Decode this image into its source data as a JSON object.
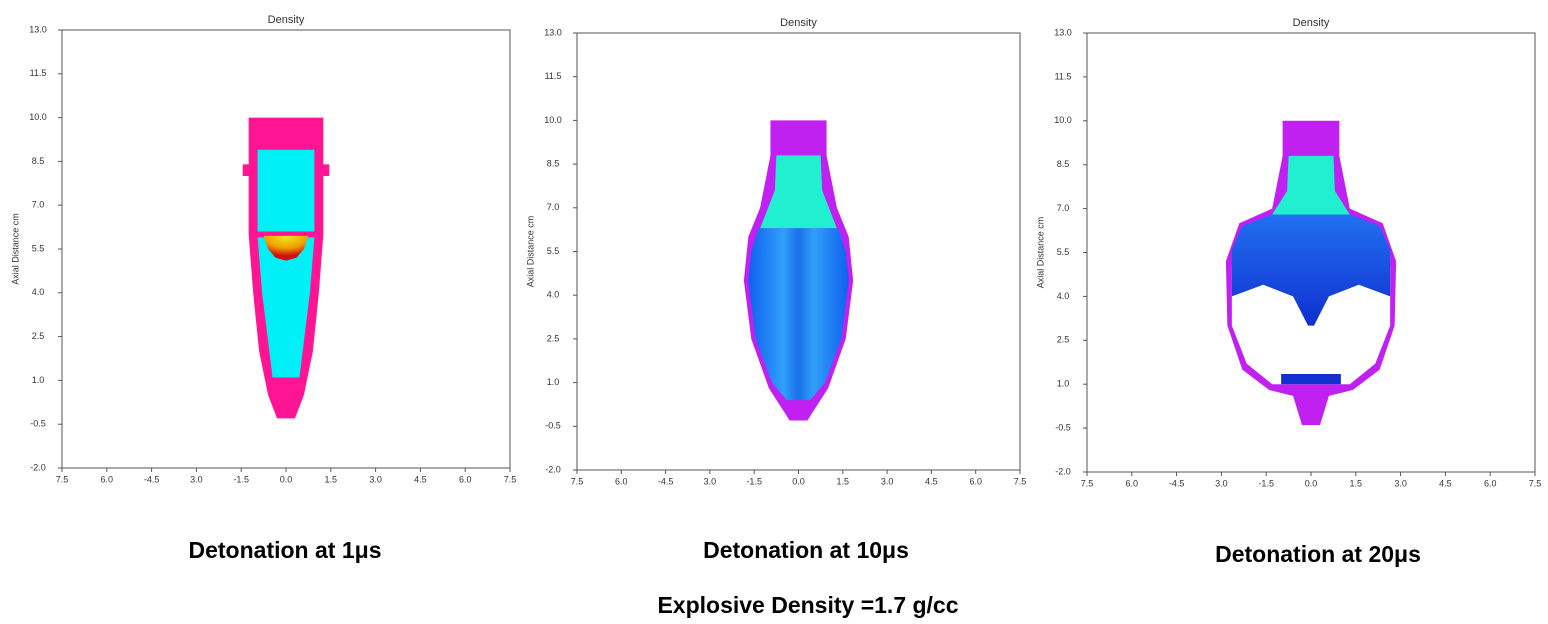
{
  "chart_data": [
    {
      "type": "density",
      "title": "Density",
      "ylabel": "Axial Distance cm",
      "caption": "Detonation at 1μs",
      "xlim": [
        -7.5,
        7.5
      ],
      "ylim": [
        -2.0,
        13.0
      ],
      "xticks": [
        {
          "value": -7.5,
          "label": "7.5"
        },
        {
          "value": -6.0,
          "label": "6.0"
        },
        -4.5,
        {
          "value": -3.0,
          "label": "3.0"
        },
        -1.5,
        {
          "value": 0,
          "label": "0.0"
        },
        1.5,
        {
          "value": 3.0,
          "label": "3.0"
        },
        4.5,
        {
          "value": 6.0,
          "label": "6.0"
        },
        7.5
      ],
      "yticks": [
        {
          "value": -2.0,
          "label": "-2.0"
        },
        -0.5,
        {
          "value": 1.0,
          "label": "1.0"
        },
        2.5,
        {
          "value": 4.0,
          "label": "4.0"
        },
        5.5,
        {
          "value": 7.0,
          "label": "7.0"
        },
        8.5,
        {
          "value": 10.0,
          "label": "10.0"
        },
        11.5,
        {
          "value": 13.0,
          "label": "13.0"
        }
      ]
    },
    {
      "type": "density",
      "title": "Density",
      "ylabel": "Axial Distance cm",
      "caption": "Detonation at 10μs",
      "xlim": [
        -7.5,
        7.5
      ],
      "ylim": [
        -2.0,
        13.0
      ],
      "xticks": [
        {
          "value": -7.5,
          "label": "7.5"
        },
        {
          "value": -6.0,
          "label": "6.0"
        },
        -4.5,
        {
          "value": -3.0,
          "label": "3.0"
        },
        -1.5,
        {
          "value": 0,
          "label": "0.0"
        },
        1.5,
        {
          "value": 3.0,
          "label": "3.0"
        },
        4.5,
        {
          "value": 6.0,
          "label": "6.0"
        },
        7.5
      ],
      "yticks": [
        {
          "value": -2.0,
          "label": "-2.0"
        },
        -0.5,
        {
          "value": 1.0,
          "label": "1.0"
        },
        2.5,
        {
          "value": 4.0,
          "label": "4.0"
        },
        5.5,
        {
          "value": 7.0,
          "label": "7.0"
        },
        8.5,
        {
          "value": 10.0,
          "label": "10.0"
        },
        11.5,
        {
          "value": 13.0,
          "label": "13.0"
        }
      ]
    },
    {
      "type": "density",
      "title": "Density",
      "ylabel": "Axial Distance cm",
      "caption": "Detonation at 20μs",
      "xlim": [
        -7.5,
        7.5
      ],
      "ylim": [
        -2.0,
        13.0
      ],
      "xticks": [
        {
          "value": -7.5,
          "label": "7.5"
        },
        {
          "value": -6.0,
          "label": "6.0"
        },
        -4.5,
        {
          "value": -3.0,
          "label": "3.0"
        },
        -1.5,
        {
          "value": 0,
          "label": "0.0"
        },
        1.5,
        {
          "value": 3.0,
          "label": "3.0"
        },
        4.5,
        {
          "value": 6.0,
          "label": "6.0"
        },
        7.5
      ],
      "yticks": [
        {
          "value": -2.0,
          "label": "-2.0"
        },
        -0.5,
        {
          "value": 1.0,
          "label": "1.0"
        },
        2.5,
        {
          "value": 4.0,
          "label": "4.0"
        },
        5.5,
        {
          "value": 7.0,
          "label": "7.0"
        },
        8.5,
        {
          "value": 10.0,
          "label": "10.0"
        },
        11.5,
        {
          "value": 13.0,
          "label": "13.0"
        }
      ]
    }
  ],
  "caption": "Explosive Density =1.7 g/cc"
}
